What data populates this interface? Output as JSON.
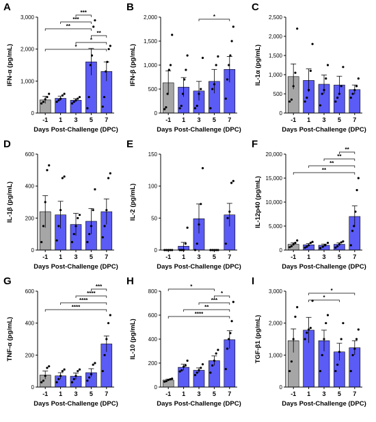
{
  "colors": {
    "baseline": "#a6a6a6",
    "treatment": "#5b5bf5",
    "axis": "#000000",
    "point": "#000000"
  },
  "chart_data": [
    {
      "type": "bar",
      "panel": "A",
      "ylabel": "IFN-α (pg/mL)",
      "xlabel": "Days Post-Challenge (DPC)",
      "categories": [
        "-1",
        "1",
        "3",
        "5",
        "7"
      ],
      "values": [
        410,
        460,
        400,
        1600,
        1300
      ],
      "error": [
        110,
        70,
        50,
        420,
        300
      ],
      "points": [
        [
          300,
          350,
          430,
          500,
          600
        ],
        [
          350,
          400,
          450,
          550,
          600
        ],
        [
          300,
          350,
          400,
          450,
          500
        ],
        [
          150,
          500,
          1500,
          1800,
          2700,
          2900
        ],
        [
          200,
          500,
          1300,
          1600,
          2000,
          2100
        ]
      ],
      "ylim": [
        0,
        3000
      ],
      "yticks": [
        0,
        1000,
        2000,
        3000
      ],
      "ytick_labels": [
        "0",
        "1,000",
        "2,000",
        "3,000"
      ],
      "significance": [
        {
          "from": 0,
          "to": 4,
          "label": "*"
        },
        {
          "from": 2,
          "to": 4,
          "label": "*"
        },
        {
          "from": 3,
          "to": 4,
          "label": "**"
        },
        {
          "from": 0,
          "to": 3,
          "label": "**"
        },
        {
          "from": 1,
          "to": 3,
          "label": "***"
        },
        {
          "from": 2,
          "to": 3,
          "label": "***"
        }
      ]
    },
    {
      "type": "bar",
      "panel": "B",
      "ylabel": "IFN-β (pg/mL)",
      "xlabel": "Days Post-Challenge (DPC)",
      "categories": [
        "-1",
        "1",
        "3",
        "5",
        "7"
      ],
      "values": [
        630,
        540,
        460,
        660,
        910
      ],
      "error": [
        250,
        200,
        200,
        250,
        270
      ],
      "points": [
        [
          80,
          120,
          400,
          900,
          1000,
          1630
        ],
        [
          100,
          150,
          400,
          700,
          900,
          1200
        ],
        [
          100,
          150,
          400,
          500,
          1150
        ],
        [
          100,
          500,
          600,
          1000,
          1180
        ],
        [
          300,
          700,
          1000,
          1200,
          1500,
          1800
        ]
      ],
      "ylim": [
        0,
        2000
      ],
      "yticks": [
        0,
        500,
        1000,
        1500,
        2000
      ],
      "ytick_labels": [
        "0",
        "500",
        "1,000",
        "1,500",
        "2,000"
      ],
      "significance": [
        {
          "from": 2,
          "to": 4,
          "label": "*"
        }
      ]
    },
    {
      "type": "bar",
      "panel": "C",
      "ylabel": "IL-1α (pg/mL)",
      "xlabel": "Days Post-Challenge (DPC)",
      "categories": [
        "-1",
        "1",
        "3",
        "5",
        "7"
      ],
      "values": [
        950,
        850,
        750,
        730,
        610
      ],
      "error": [
        330,
        300,
        240,
        230,
        120
      ],
      "points": [
        [
          300,
          350,
          700,
          1050,
          2200
        ],
        [
          300,
          400,
          600,
          1100,
          1800
        ],
        [
          200,
          500,
          600,
          900,
          1250
        ],
        [
          300,
          400,
          500,
          700,
          1200
        ],
        [
          400,
          500,
          600,
          700,
          900
        ]
      ],
      "ylim": [
        0,
        2500
      ],
      "yticks": [
        0,
        500,
        1000,
        1500,
        2000,
        2500
      ],
      "ytick_labels": [
        "0",
        "500",
        "1,000",
        "1,500",
        "2,000",
        "2,500"
      ],
      "significance": []
    },
    {
      "type": "bar",
      "panel": "D",
      "ylabel": "IL-1β (pg/mL)",
      "xlabel": "Days Post-Challenge (DPC)",
      "categories": [
        "-1",
        "1",
        "3",
        "5",
        "7"
      ],
      "values": [
        240,
        220,
        160,
        180,
        240
      ],
      "error": [
        100,
        85,
        70,
        80,
        80
      ],
      "points": [
        [
          50,
          150,
          300,
          500,
          530
        ],
        [
          60,
          150,
          250,
          450,
          460
        ],
        [
          50,
          100,
          150,
          200,
          220
        ],
        [
          50,
          100,
          150,
          250,
          380
        ],
        [
          80,
          150,
          250,
          450,
          480
        ]
      ],
      "ylim": [
        0,
        600
      ],
      "yticks": [
        0,
        200,
        400,
        600
      ],
      "ytick_labels": [
        "0",
        "200",
        "400",
        "600"
      ],
      "significance": []
    },
    {
      "type": "bar",
      "panel": "E",
      "ylabel": "IL-2 (pg/mL)",
      "xlabel": "Days Post-Challenge (DPC)",
      "categories": [
        "-1",
        "1",
        "3",
        "5",
        "7"
      ],
      "values": [
        0,
        6,
        49,
        0,
        55
      ],
      "error": [
        0,
        6,
        23,
        0,
        18
      ],
      "points": [
        [
          0,
          0,
          0,
          0,
          0
        ],
        [
          0,
          0,
          0,
          10,
          35
        ],
        [
          0,
          10,
          40,
          72,
          128
        ],
        [
          0,
          0,
          0,
          0,
          0
        ],
        [
          10,
          50,
          60,
          105,
          108
        ]
      ],
      "ylim": [
        0,
        150
      ],
      "yticks": [
        0,
        50,
        100,
        150
      ],
      "ytick_labels": [
        "0",
        "50",
        "100",
        "150"
      ],
      "significance": []
    },
    {
      "type": "bar",
      "panel": "F",
      "ylabel": "IL-12p40 (pg/mL)",
      "xlabel": "Days Post-Challenge (DPC)",
      "categories": [
        "-1",
        "1",
        "3",
        "5",
        "7"
      ],
      "values": [
        1200,
        1100,
        1000,
        1200,
        7000
      ],
      "error": [
        300,
        250,
        250,
        300,
        2200
      ],
      "points": [
        [
          600,
          800,
          1200,
          1500,
          2000
        ],
        [
          500,
          700,
          1000,
          1500,
          1700
        ],
        [
          400,
          700,
          1000,
          1500
        ],
        [
          500,
          800,
          1200,
          1600,
          1800
        ],
        [
          1000,
          4000,
          5000,
          8000,
          12500,
          15000
        ]
      ],
      "ylim": [
        0,
        20000
      ],
      "yticks": [
        0,
        5000,
        10000,
        15000,
        20000
      ],
      "ytick_labels": [
        "0",
        "5,000",
        "10,000",
        "15,000",
        "20,000"
      ],
      "significance": [
        {
          "from": 0,
          "to": 4,
          "label": "**"
        },
        {
          "from": 1,
          "to": 4,
          "label": "**"
        },
        {
          "from": 2,
          "to": 4,
          "label": "**"
        },
        {
          "from": 3,
          "to": 4,
          "label": "**"
        }
      ]
    },
    {
      "type": "bar",
      "panel": "G",
      "ylabel": "TNF-α (pg/mL)",
      "xlabel": "Days Post-Challenge (DPC)",
      "categories": [
        "-1",
        "1",
        "3",
        "5",
        "7"
      ],
      "values": [
        75,
        70,
        68,
        90,
        270
      ],
      "error": [
        25,
        20,
        20,
        25,
        50
      ],
      "points": [
        [
          30,
          40,
          70,
          120,
          130
        ],
        [
          30,
          50,
          70,
          100,
          110
        ],
        [
          30,
          50,
          70,
          100,
          110
        ],
        [
          40,
          60,
          80,
          140,
          150
        ],
        [
          100,
          200,
          300,
          400,
          450
        ]
      ],
      "ylim": [
        0,
        600
      ],
      "yticks": [
        0,
        200,
        400,
        600
      ],
      "ytick_labels": [
        "0",
        "200",
        "400",
        "600"
      ],
      "significance": [
        {
          "from": 0,
          "to": 4,
          "label": "****"
        },
        {
          "from": 1,
          "to": 4,
          "label": "****"
        },
        {
          "from": 2,
          "to": 4,
          "label": "****"
        },
        {
          "from": 3,
          "to": 4,
          "label": "***"
        }
      ]
    },
    {
      "type": "bar",
      "panel": "H",
      "ylabel": "IL-10 (pg/mL)",
      "xlabel": "Days Post-Challenge (DPC)",
      "categories": [
        "-1",
        "1",
        "3",
        "5",
        "7"
      ],
      "values": [
        58,
        165,
        140,
        220,
        395
      ],
      "error": [
        8,
        25,
        20,
        40,
        75
      ],
      "points": [
        [
          45,
          50,
          60,
          65,
          70
        ],
        [
          130,
          140,
          170,
          180,
          220
        ],
        [
          100,
          120,
          140,
          160,
          190
        ],
        [
          120,
          180,
          220,
          280,
          310
        ],
        [
          150,
          320,
          400,
          450,
          550,
          710
        ]
      ],
      "ylim": [
        0,
        800
      ],
      "yticks": [
        0,
        200,
        400,
        600,
        800
      ],
      "ytick_labels": [
        "0",
        "200",
        "400",
        "600",
        "800"
      ],
      "significance": [
        {
          "from": 0,
          "to": 4,
          "label": "****"
        },
        {
          "from": 1,
          "to": 4,
          "label": "**"
        },
        {
          "from": 2,
          "to": 4,
          "label": "***"
        },
        {
          "from": 3,
          "to": 4,
          "label": "*"
        },
        {
          "from": 0,
          "to": 3,
          "label": "*"
        }
      ]
    },
    {
      "type": "bar",
      "panel": "I",
      "ylabel": "TGF-β1 (pg/mL)",
      "xlabel": "Days Post-Challenge (DPC)",
      "categories": [
        "-1",
        "1",
        "3",
        "5",
        "7"
      ],
      "values": [
        1450,
        1780,
        1450,
        1100,
        1230
      ],
      "error": [
        370,
        400,
        330,
        270,
        220
      ],
      "points": [
        [
          500,
          800,
          1500,
          2200,
          2500
        ],
        [
          1500,
          1700,
          1800,
          1850,
          2700
        ],
        [
          500,
          1000,
          1500,
          2000,
          2250
        ],
        [
          500,
          700,
          1100,
          1500,
          2000
        ],
        [
          500,
          1000,
          1200,
          1500,
          1800
        ]
      ],
      "ylim": [
        0,
        3000
      ],
      "yticks": [
        0,
        1000,
        2000,
        3000
      ],
      "ytick_labels": [
        "0",
        "1,000",
        "2,000",
        "3,000"
      ],
      "significance": [
        {
          "from": 1,
          "to": 3,
          "label": "*"
        },
        {
          "from": 1,
          "to": 4,
          "label": "*"
        }
      ]
    }
  ]
}
